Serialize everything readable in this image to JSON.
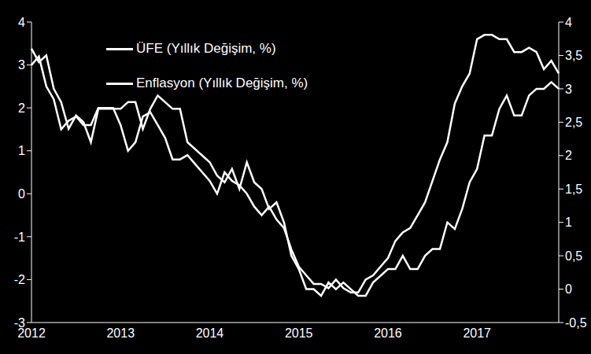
{
  "chart_data": {
    "type": "line",
    "categories": [
      "2012",
      null,
      null,
      null,
      null,
      null,
      null,
      null,
      null,
      null,
      null,
      null,
      "2013",
      null,
      null,
      null,
      null,
      null,
      null,
      null,
      null,
      null,
      null,
      null,
      "2014",
      null,
      null,
      null,
      null,
      null,
      null,
      null,
      null,
      null,
      null,
      null,
      "2015",
      null,
      null,
      null,
      null,
      null,
      null,
      null,
      null,
      null,
      null,
      null,
      "2016",
      null,
      null,
      null,
      null,
      null,
      null,
      null,
      null,
      null,
      null,
      null,
      "2017",
      null,
      null,
      null,
      null,
      null,
      null,
      null,
      null,
      null,
      null,
      null
    ],
    "series": [
      {
        "name": "ÜFE (Yıllık Değişim, %)",
        "color": "#ffffff",
        "values": [
          3.0,
          3.2,
          2.5,
          2.2,
          1.5,
          1.7,
          1.8,
          1.6,
          1.6,
          2.0,
          2.0,
          2.0,
          1.6,
          1.0,
          1.2,
          1.8,
          1.9,
          1.6,
          1.3,
          0.8,
          0.8,
          0.9,
          0.7,
          0.5,
          0.3,
          0.0,
          0.5,
          0.3,
          0.2,
          0.0,
          -0.3,
          -0.5,
          -0.3,
          -0.6,
          -0.8,
          -1.3,
          -1.7,
          -1.9,
          -2.1,
          -2.1,
          -2.2,
          -2.0,
          -2.2,
          -2.3,
          -2.3,
          -2.0,
          -1.9,
          -1.7,
          -1.5,
          -1.1,
          -0.9,
          -0.8,
          -0.5,
          -0.2,
          0.3,
          0.8,
          1.2,
          2.1,
          2.5,
          2.8,
          3.6,
          3.7,
          3.7,
          3.6,
          3.6,
          3.3,
          3.3,
          3.4,
          3.3,
          2.9,
          3.1,
          2.8
        ]
      },
      {
        "name": "Enflasyon (Yıllık Değişim, %)",
        "color": "#ffffff",
        "axis": "y2",
        "values": [
          3.6,
          3.4,
          3.5,
          3.0,
          2.8,
          2.4,
          2.6,
          2.5,
          2.2,
          2.7,
          2.7,
          2.7,
          2.7,
          2.8,
          2.8,
          2.4,
          2.7,
          2.9,
          2.8,
          2.7,
          2.7,
          2.2,
          2.1,
          2.0,
          1.9,
          1.7,
          1.6,
          1.8,
          1.5,
          1.9,
          1.6,
          1.5,
          1.2,
          1.3,
          1.0,
          0.5,
          0.3,
          0.0,
          0.0,
          -0.1,
          0.1,
          0.0,
          0.1,
          0.0,
          -0.1,
          -0.1,
          0.1,
          0.2,
          0.3,
          0.3,
          0.5,
          0.3,
          0.3,
          0.5,
          0.6,
          0.6,
          1.0,
          0.9,
          1.2,
          1.6,
          1.8,
          2.3,
          2.3,
          2.7,
          2.9,
          2.6,
          2.6,
          2.9,
          3.0,
          3.0,
          3.1,
          3.0
        ]
      }
    ],
    "ylim": [
      -3,
      4
    ],
    "yticks": [
      -3,
      -2,
      -1,
      0,
      1,
      2,
      3,
      4
    ],
    "y2lim": [
      -0.5,
      4
    ],
    "y2ticks": [
      {
        "value": -0.5,
        "label": "-0,5"
      },
      0,
      {
        "value": 0.5,
        "label": "0,5"
      },
      1,
      {
        "value": 1.5,
        "label": "1,5"
      },
      2,
      {
        "value": 2.5,
        "label": "2,5"
      },
      3,
      {
        "value": 3.5,
        "label": "3,5"
      },
      4
    ],
    "grid": false,
    "legend": "upper left"
  }
}
